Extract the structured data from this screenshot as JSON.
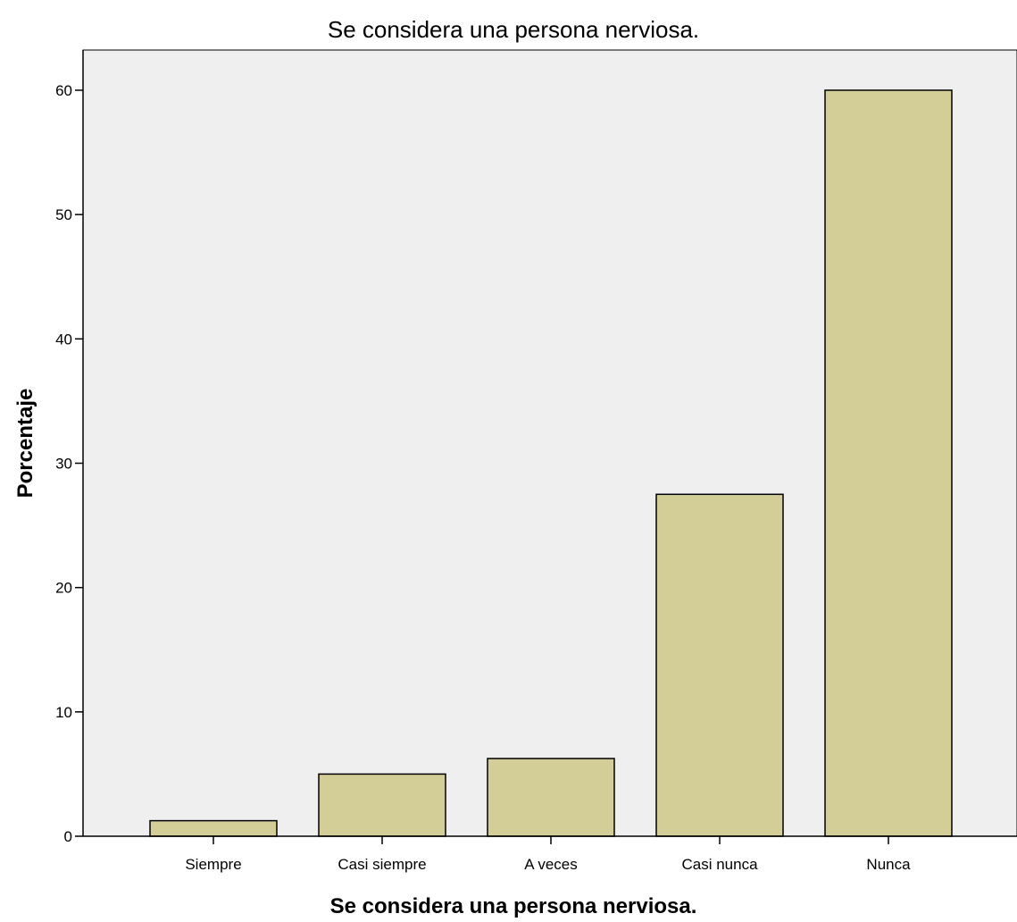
{
  "chart_data": {
    "type": "bar",
    "title": "Se considera una persona nerviosa.",
    "xlabel": "Se considera una persona nerviosa.",
    "ylabel": "Porcentaje",
    "categories": [
      "Siempre",
      "Casi siempre",
      "A veces",
      "Casi nunca",
      "Nunca"
    ],
    "values": [
      1.25,
      5,
      6.25,
      27.5,
      60
    ],
    "ylim": [
      0,
      63
    ],
    "yticks": [
      0,
      10,
      20,
      30,
      40,
      50,
      60
    ],
    "grid": false,
    "colors": {
      "bar": "#d3cd97",
      "plot_background": "#efefef"
    }
  }
}
